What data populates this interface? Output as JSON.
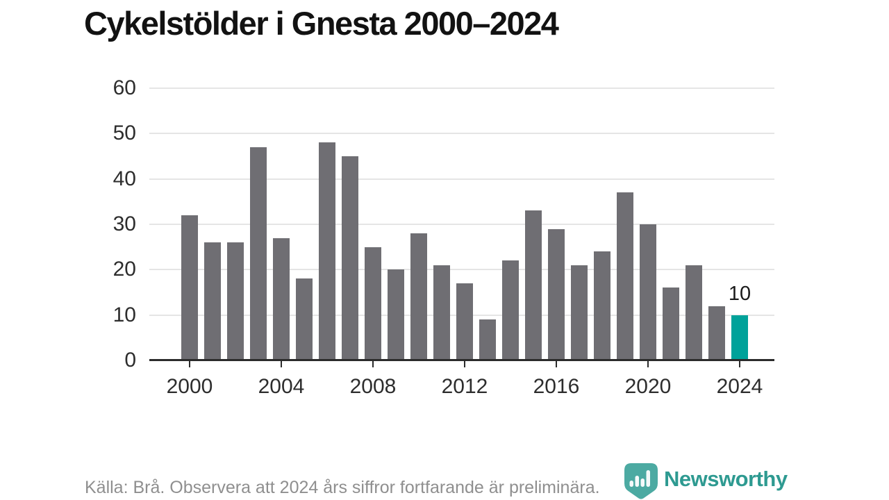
{
  "title": "Cykelstölder i Gnesta 2000–2024",
  "footer": {
    "source_note": "Källa: Brå. Observera att 2024 års siffror fortfarande är preliminära."
  },
  "branding": {
    "logo_text": "Newsworthy",
    "logo_text_color": "#2e9a91",
    "icon_color": "#4caaa2",
    "icon_name": "newsworthy-pin-barchart-icon"
  },
  "chart_data": {
    "type": "bar",
    "title": "Cykelstölder i Gnesta 2000–2024",
    "categories": [
      2000,
      2001,
      2002,
      2003,
      2004,
      2005,
      2006,
      2007,
      2008,
      2009,
      2010,
      2011,
      2012,
      2013,
      2014,
      2015,
      2016,
      2017,
      2018,
      2019,
      2020,
      2021,
      2022,
      2023,
      2024
    ],
    "values": [
      32,
      26,
      26,
      47,
      27,
      18,
      48,
      45,
      25,
      20,
      28,
      21,
      17,
      9,
      22,
      33,
      29,
      21,
      24,
      37,
      30,
      16,
      21,
      12,
      10
    ],
    "xlabel": "",
    "ylabel": "",
    "ylim": [
      0,
      60
    ],
    "yticks": [
      0,
      10,
      20,
      30,
      40,
      50,
      60
    ],
    "xtick_labels": [
      2000,
      2004,
      2008,
      2012,
      2016,
      2020,
      2024
    ],
    "grid": true,
    "legend": "none",
    "bar_color": "#6f6e73",
    "highlight": {
      "category": 2024,
      "color": "#00a29a",
      "data_label": "10"
    }
  }
}
